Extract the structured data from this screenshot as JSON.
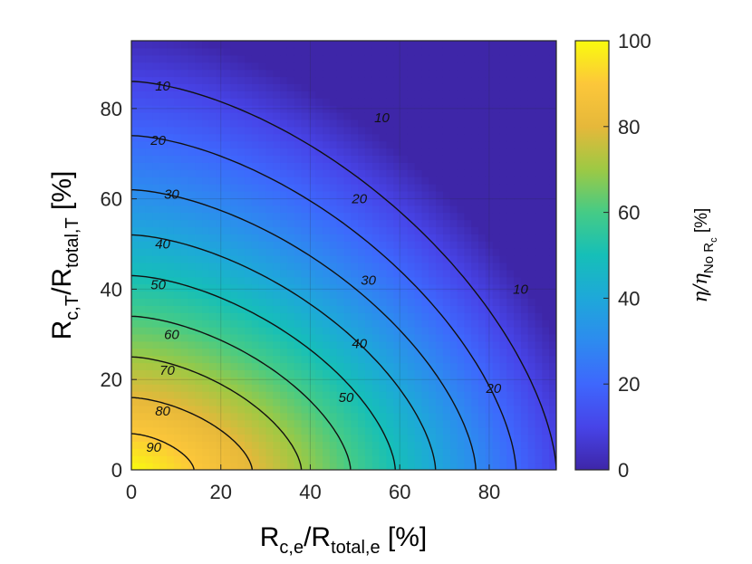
{
  "chart_data": {
    "type": "contour",
    "x": {
      "label_main": "R",
      "label_sub1": "c,e",
      "label_mid": "/R",
      "label_sub2": "total,e",
      "label_unit": " [%]",
      "range": [
        0,
        95
      ],
      "ticks": [
        0,
        20,
        40,
        60,
        80
      ]
    },
    "y": {
      "label_main": "R",
      "label_sub1": "c,T",
      "label_mid": "/R",
      "label_sub2": "total,T",
      "label_unit": "  [%]",
      "range": [
        0,
        95
      ],
      "ticks": [
        0,
        20,
        40,
        60,
        80
      ]
    },
    "colorbar": {
      "label_eta": "η/η",
      "label_sub": "No R",
      "label_subsub": "c",
      "label_unit": " [%]",
      "range": [
        0,
        100
      ],
      "ticks": [
        0,
        20,
        40,
        60,
        80,
        100
      ],
      "colormap": "parula"
    },
    "levels": [
      {
        "value": 10,
        "x_intercept": 95,
        "y_intercept": 86,
        "labels": [
          {
            "text": "10",
            "x": 7,
            "y": 85
          },
          {
            "text": "10",
            "x": 56,
            "y": 78
          },
          {
            "text": "10",
            "x": 87,
            "y": 40
          }
        ]
      },
      {
        "value": 20,
        "x_intercept": 86,
        "y_intercept": 74,
        "labels": [
          {
            "text": "20",
            "x": 6,
            "y": 73
          },
          {
            "text": "20",
            "x": 51,
            "y": 60
          },
          {
            "text": "20",
            "x": 81,
            "y": 18
          }
        ]
      },
      {
        "value": 30,
        "x_intercept": 77,
        "y_intercept": 62,
        "labels": [
          {
            "text": "30",
            "x": 9,
            "y": 61
          },
          {
            "text": "30",
            "x": 53,
            "y": 42
          }
        ]
      },
      {
        "value": 40,
        "x_intercept": 68,
        "y_intercept": 52,
        "labels": [
          {
            "text": "40",
            "x": 7,
            "y": 50
          },
          {
            "text": "40",
            "x": 51,
            "y": 28
          }
        ]
      },
      {
        "value": 50,
        "x_intercept": 59,
        "y_intercept": 43,
        "labels": [
          {
            "text": "50",
            "x": 6,
            "y": 41
          },
          {
            "text": "50",
            "x": 48,
            "y": 16
          }
        ]
      },
      {
        "value": 60,
        "x_intercept": 49,
        "y_intercept": 34,
        "labels": [
          {
            "text": "60",
            "x": 9,
            "y": 30
          }
        ]
      },
      {
        "value": 70,
        "x_intercept": 38,
        "y_intercept": 25,
        "labels": [
          {
            "text": "70",
            "x": 8,
            "y": 22
          }
        ]
      },
      {
        "value": 80,
        "x_intercept": 27,
        "y_intercept": 16,
        "labels": [
          {
            "text": "80",
            "x": 7,
            "y": 13
          }
        ]
      },
      {
        "value": 90,
        "x_intercept": 14,
        "y_intercept": 8,
        "labels": [
          {
            "text": "90",
            "x": 5,
            "y": 5
          }
        ]
      }
    ],
    "grid": true
  }
}
